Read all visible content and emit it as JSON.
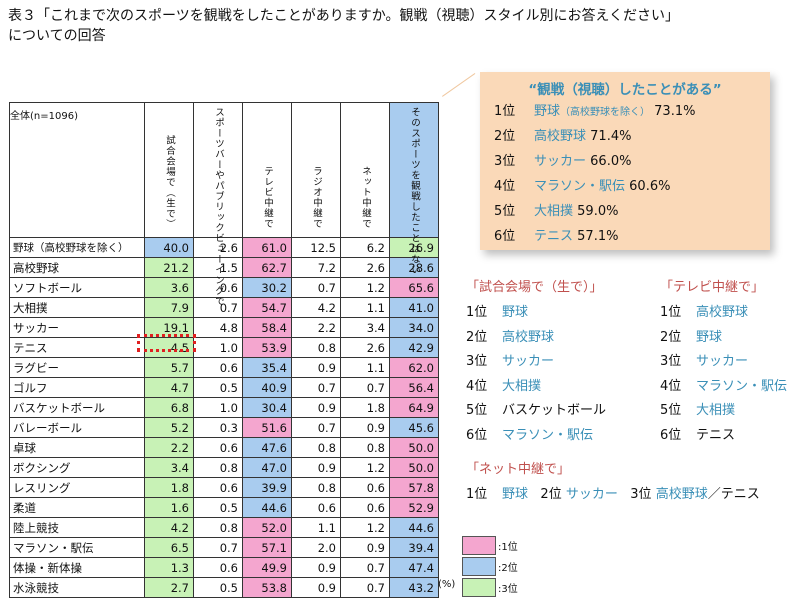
{
  "title": {
    "line1": "表３「これまで次のスポーツを観戦をしたことがありますか。観戦（視聴）スタイル別にお答えください」",
    "line2": "についての回答"
  },
  "table": {
    "columns": [
      "全体(n=1096)",
      "試合会場で（生で）",
      "スポーツバーやパブリックビューイングで",
      "テレビ中継で",
      "ラジオ中継で",
      "ネット中継で",
      "そのスポーツを観戦したことはない"
    ],
    "rows": [
      {
        "name": "野球（高校野球を除く）",
        "v": [
          "40.0",
          "2.6",
          "61.0",
          "12.5",
          "6.2",
          "26.9"
        ],
        "rank": [
          2,
          0,
          1,
          0,
          0,
          3
        ]
      },
      {
        "name": "高校野球",
        "v": [
          "21.2",
          "1.5",
          "62.7",
          "7.2",
          "2.6",
          "28.6"
        ],
        "rank": [
          3,
          0,
          1,
          0,
          0,
          2
        ]
      },
      {
        "name": "ソフトボール",
        "v": [
          "3.6",
          "0.6",
          "30.2",
          "0.7",
          "1.2",
          "65.6"
        ],
        "rank": [
          3,
          0,
          2,
          0,
          0,
          1
        ]
      },
      {
        "name": "大相撲",
        "v": [
          "7.9",
          "0.7",
          "54.7",
          "4.2",
          "1.1",
          "41.0"
        ],
        "rank": [
          3,
          0,
          1,
          0,
          0,
          2
        ]
      },
      {
        "name": "サッカー",
        "v": [
          "19.1",
          "4.8",
          "58.4",
          "2.2",
          "3.4",
          "34.0"
        ],
        "rank": [
          3,
          0,
          1,
          0,
          0,
          2
        ]
      },
      {
        "name": "テニス",
        "v": [
          "4.5",
          "1.0",
          "53.9",
          "0.8",
          "2.6",
          "42.9"
        ],
        "rank": [
          3,
          0,
          1,
          0,
          0,
          2
        ]
      },
      {
        "name": "ラグビー",
        "v": [
          "5.7",
          "0.6",
          "35.4",
          "0.9",
          "1.1",
          "62.0"
        ],
        "rank": [
          3,
          0,
          2,
          0,
          0,
          1
        ]
      },
      {
        "name": "ゴルフ",
        "v": [
          "4.7",
          "0.5",
          "40.9",
          "0.7",
          "0.7",
          "56.4"
        ],
        "rank": [
          3,
          0,
          2,
          0,
          0,
          1
        ]
      },
      {
        "name": "バスケットボール",
        "v": [
          "6.8",
          "1.0",
          "30.4",
          "0.9",
          "1.8",
          "64.9"
        ],
        "rank": [
          3,
          0,
          2,
          0,
          0,
          1
        ]
      },
      {
        "name": "バレーボール",
        "v": [
          "5.2",
          "0.3",
          "51.6",
          "0.7",
          "0.9",
          "45.6"
        ],
        "rank": [
          3,
          0,
          1,
          0,
          0,
          2
        ]
      },
      {
        "name": "卓球",
        "v": [
          "2.2",
          "0.6",
          "47.6",
          "0.8",
          "0.8",
          "50.0"
        ],
        "rank": [
          3,
          0,
          2,
          0,
          0,
          1
        ]
      },
      {
        "name": "ボクシング",
        "v": [
          "3.4",
          "0.8",
          "47.0",
          "0.9",
          "1.2",
          "50.0"
        ],
        "rank": [
          3,
          0,
          2,
          0,
          0,
          1
        ]
      },
      {
        "name": "レスリング",
        "v": [
          "1.8",
          "0.6",
          "39.9",
          "0.8",
          "0.6",
          "57.8"
        ],
        "rank": [
          3,
          0,
          2,
          0,
          0,
          1
        ]
      },
      {
        "name": "柔道",
        "v": [
          "1.6",
          "0.5",
          "44.6",
          "0.6",
          "0.6",
          "52.9"
        ],
        "rank": [
          3,
          0,
          2,
          0,
          0,
          1
        ]
      },
      {
        "name": "陸上競技",
        "v": [
          "4.2",
          "0.8",
          "52.0",
          "1.1",
          "1.2",
          "44.6"
        ],
        "rank": [
          3,
          0,
          1,
          0,
          0,
          2
        ]
      },
      {
        "name": "マラソン・駅伝",
        "v": [
          "6.5",
          "0.7",
          "57.1",
          "2.0",
          "0.9",
          "39.4"
        ],
        "rank": [
          3,
          0,
          1,
          0,
          0,
          2
        ]
      },
      {
        "name": "体操・新体操",
        "v": [
          "1.3",
          "0.6",
          "49.9",
          "0.9",
          "0.7",
          "47.4"
        ],
        "rank": [
          3,
          0,
          1,
          0,
          0,
          2
        ]
      },
      {
        "name": "水泳競技",
        "v": [
          "2.7",
          "0.5",
          "53.8",
          "0.9",
          "0.7",
          "43.2"
        ],
        "rank": [
          3,
          0,
          1,
          0,
          0,
          2
        ]
      }
    ],
    "unit": "(%)"
  },
  "callout": {
    "title": "“観戦（視聴）したことがある”",
    "items": [
      {
        "rank": "1位",
        "name": "野球",
        "note": "（高校野球を除く）",
        "value": "73.1%"
      },
      {
        "rank": "2位",
        "name": "高校野球",
        "note": "",
        "value": "71.4%"
      },
      {
        "rank": "3位",
        "name": "サッカー",
        "note": "",
        "value": "66.0%"
      },
      {
        "rank": "4位",
        "name": "マラソン・駅伝",
        "note": "",
        "value": "60.6%"
      },
      {
        "rank": "5位",
        "name": "大相撲",
        "note": "",
        "value": "59.0%"
      },
      {
        "rank": "6位",
        "name": "テニス",
        "note": "",
        "value": "57.1%"
      }
    ]
  },
  "venue": {
    "title": "「試合会場で（生で）」",
    "items": [
      {
        "rank": "1位",
        "name": "野球",
        "colored": true
      },
      {
        "rank": "2位",
        "name": "高校野球",
        "colored": true
      },
      {
        "rank": "3位",
        "name": "サッカー",
        "colored": true
      },
      {
        "rank": "4位",
        "name": "大相撲",
        "colored": true
      },
      {
        "rank": "5位",
        "name": "バスケットボール",
        "colored": false
      },
      {
        "rank": "6位",
        "name": "マラソン・駅伝",
        "colored": true
      }
    ]
  },
  "tv": {
    "title": "「テレビ中継で」",
    "items": [
      {
        "rank": "1位",
        "name": "高校野球",
        "colored": true
      },
      {
        "rank": "2位",
        "name": "野球",
        "colored": true
      },
      {
        "rank": "3位",
        "name": "サッカー",
        "colored": true
      },
      {
        "rank": "4位",
        "name": "マラソン・駅伝",
        "colored": true
      },
      {
        "rank": "5位",
        "name": "大相撲",
        "colored": true
      },
      {
        "rank": "6位",
        "name": "テニス",
        "colored": false
      }
    ]
  },
  "net": {
    "title": "「ネット中継で」",
    "r1": "1位",
    "n1": "野球",
    "r2": "2位",
    "n2": "サッカー",
    "r3": "3位",
    "n3": "高校野球",
    "n3b": "／テニス"
  },
  "legend": [
    {
      "label": ":1位",
      "color": "#f4a6cf"
    },
    {
      "label": ":2位",
      "color": "#a9ccef"
    },
    {
      "label": ":3位",
      "color": "#c8f2b6"
    }
  ]
}
